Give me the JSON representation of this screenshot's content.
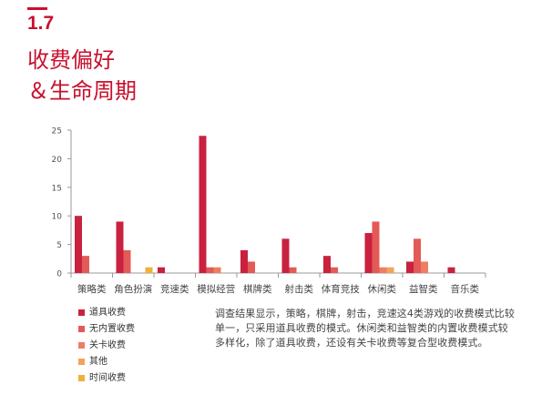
{
  "section": {
    "number": "1.7",
    "title_line1": "收费偏好",
    "title_line2": "＆生命周期"
  },
  "chart_data": {
    "type": "bar",
    "categories": [
      "策略类",
      "角色扮演",
      "竞速类",
      "模拟经营",
      "棋牌类",
      "射击类",
      "体育竞技",
      "休闲类",
      "益智类",
      "音乐类"
    ],
    "yticks": [
      0,
      5,
      10,
      15,
      20,
      25
    ],
    "ylim": [
      0,
      25
    ],
    "title": "",
    "xlabel": "",
    "ylabel": "",
    "series": [
      {
        "name": "道具收费",
        "color": "#c9213f",
        "values": [
          10,
          9,
          1,
          24,
          4,
          6,
          3,
          7,
          2,
          1
        ]
      },
      {
        "name": "无内置收费",
        "color": "#e35a56",
        "values": [
          3,
          4,
          0,
          1,
          2,
          1,
          1,
          9,
          6,
          0
        ]
      },
      {
        "name": "关卡收费",
        "color": "#ee7e62",
        "values": [
          0,
          0,
          0,
          1,
          0,
          0,
          0,
          1,
          2,
          0
        ]
      },
      {
        "name": "其他",
        "color": "#f3a25b",
        "values": [
          0,
          0,
          0,
          0,
          0,
          0,
          0,
          1,
          0,
          0
        ]
      },
      {
        "name": "时间收费",
        "color": "#f0b03a",
        "values": [
          0,
          1,
          0,
          0,
          0,
          0,
          0,
          0,
          0,
          0
        ]
      }
    ],
    "legend_position": "bottom-left",
    "grid": false
  },
  "description": "调查结果显示，策略，棋牌，射击，竞速这4类游戏的收费模式比较单一，只采用道具收费的模式。休闲类和益智类的内置收费模式较多样化，除了道具收费，还设有关卡收费等复合型收费模式。"
}
